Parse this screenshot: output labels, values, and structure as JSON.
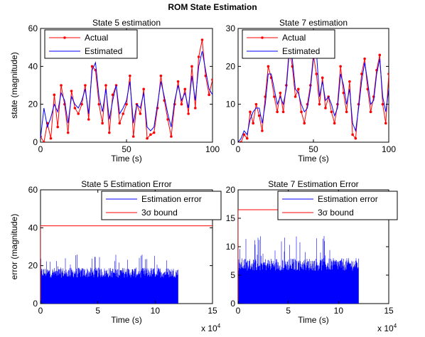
{
  "figure": {
    "suptitle": "ROM  State Estimation"
  },
  "colors": {
    "actual": "#ff0000",
    "estimated": "#0000ff",
    "axis": "#000000"
  },
  "chart_data": [
    {
      "type": "line",
      "title": "State 5 estimation",
      "xlabel": "Time (s)",
      "ylabel": "state (magnitude)",
      "xlim": [
        0,
        100
      ],
      "ylim": [
        0,
        60
      ],
      "xticks": [
        0,
        50,
        100
      ],
      "yticks": [
        0,
        20,
        40,
        60
      ],
      "xtick_labels": [
        "0",
        "50",
        "100"
      ],
      "ytick_labels": [
        "0",
        "20",
        "40",
        "60"
      ],
      "legend": {
        "position": "top-left"
      },
      "series": [
        {
          "name": "Actual",
          "color": "#ff0000",
          "marker": "dot",
          "x": [
            0,
            2,
            4,
            6,
            8,
            10,
            12,
            14,
            16,
            18,
            20,
            22,
            24,
            26,
            28,
            30,
            32,
            34,
            36,
            38,
            40,
            42,
            44,
            46,
            48,
            50,
            52,
            54,
            56,
            58,
            60,
            62,
            64,
            66,
            68,
            70,
            72,
            74,
            76,
            78,
            80,
            82,
            84,
            86,
            88,
            90,
            92,
            94,
            96,
            98,
            100
          ],
          "y": [
            3,
            0,
            10,
            2,
            25,
            8,
            30,
            20,
            5,
            27,
            18,
            15,
            20,
            30,
            12,
            40,
            38,
            20,
            10,
            30,
            5,
            25,
            30,
            10,
            15,
            20,
            35,
            3,
            20,
            15,
            28,
            2,
            4,
            5,
            18,
            35,
            22,
            12,
            3,
            20,
            32,
            20,
            28,
            15,
            40,
            18,
            45,
            54,
            35,
            25,
            33
          ]
        },
        {
          "name": "Estimated",
          "color": "#0000ff",
          "marker": "none",
          "x": [
            0,
            2,
            4,
            6,
            8,
            10,
            12,
            14,
            16,
            18,
            20,
            22,
            24,
            26,
            28,
            30,
            32,
            34,
            36,
            38,
            40,
            42,
            44,
            46,
            48,
            50,
            52,
            54,
            56,
            58,
            60,
            62,
            64,
            66,
            68,
            70,
            72,
            74,
            76,
            78,
            80,
            82,
            84,
            86,
            88,
            90,
            92,
            94,
            96,
            98,
            100
          ],
          "y": [
            2,
            18,
            8,
            13,
            20,
            16,
            26,
            22,
            10,
            24,
            20,
            18,
            22,
            28,
            15,
            38,
            42,
            24,
            16,
            28,
            12,
            22,
            30,
            15,
            18,
            22,
            32,
            10,
            20,
            18,
            26,
            8,
            6,
            8,
            20,
            32,
            24,
            15,
            8,
            22,
            30,
            22,
            26,
            18,
            35,
            22,
            40,
            48,
            38,
            28,
            25
          ]
        }
      ]
    },
    {
      "type": "line",
      "title": "State 7 estimation",
      "xlabel": "Time (s)",
      "ylabel": "",
      "xlim": [
        0,
        100
      ],
      "ylim": [
        0,
        30
      ],
      "xticks": [
        0,
        50,
        100
      ],
      "yticks": [
        0,
        10,
        20,
        30
      ],
      "xtick_labels": [
        "0",
        "50",
        "100"
      ],
      "ytick_labels": [
        "0",
        "10",
        "20",
        "30"
      ],
      "legend": {
        "position": "top-left"
      },
      "series": [
        {
          "name": "Actual",
          "color": "#ff0000",
          "marker": "dot",
          "x": [
            0,
            2,
            4,
            6,
            8,
            10,
            12,
            14,
            16,
            18,
            20,
            22,
            24,
            26,
            28,
            30,
            32,
            34,
            36,
            38,
            40,
            42,
            44,
            46,
            48,
            50,
            52,
            54,
            56,
            58,
            60,
            62,
            64,
            66,
            68,
            70,
            72,
            74,
            76,
            78,
            80,
            82,
            84,
            86,
            88,
            90,
            92,
            94,
            96,
            98,
            100
          ],
          "y": [
            0,
            0,
            2,
            1,
            8,
            5,
            10,
            7,
            3,
            12,
            20,
            17,
            12,
            8,
            13,
            8,
            15,
            25,
            20,
            12,
            14,
            8,
            5,
            10,
            15,
            23,
            18,
            10,
            17,
            9,
            12,
            8,
            5,
            10,
            20,
            13,
            8,
            16,
            2,
            1,
            10,
            18,
            22,
            14,
            8,
            12,
            19,
            23,
            10,
            5,
            18
          ]
        },
        {
          "name": "Estimated",
          "color": "#0000ff",
          "marker": "none",
          "x": [
            0,
            2,
            4,
            6,
            8,
            10,
            12,
            14,
            16,
            18,
            20,
            22,
            24,
            26,
            28,
            30,
            32,
            34,
            36,
            38,
            40,
            42,
            44,
            46,
            48,
            50,
            52,
            54,
            56,
            58,
            60,
            62,
            64,
            66,
            68,
            70,
            72,
            74,
            76,
            78,
            80,
            82,
            84,
            86,
            88,
            90,
            92,
            94,
            96,
            98,
            100
          ],
          "y": [
            0,
            1,
            3,
            2,
            6,
            8,
            9,
            9,
            5,
            10,
            18,
            18,
            14,
            10,
            12,
            10,
            14,
            24,
            22,
            14,
            13,
            10,
            8,
            9,
            14,
            22,
            24,
            12,
            16,
            11,
            12,
            10,
            7,
            9,
            18,
            15,
            10,
            14,
            5,
            3,
            9,
            16,
            21,
            16,
            10,
            11,
            18,
            22,
            12,
            8,
            14
          ]
        }
      ]
    },
    {
      "type": "bar",
      "title": "State 5 Estimation Error",
      "xlabel": "Time (s)",
      "ylabel": "error (magnitude)",
      "x_multiplier_label": "x 10",
      "x_multiplier_exp": "4",
      "xlim": [
        0,
        150000
      ],
      "ylim": [
        0,
        60
      ],
      "xticks": [
        0,
        50000,
        100000,
        150000
      ],
      "yticks": [
        0,
        20,
        40,
        60
      ],
      "xtick_labels": [
        "0",
        "5",
        "10",
        "15"
      ],
      "ytick_labels": [
        "0",
        "20",
        "40",
        "60"
      ],
      "legend": {
        "position": "top-right"
      },
      "error_band": {
        "x_start": 0,
        "x_end": 120000,
        "typical": 19,
        "peak": 26
      },
      "series": [
        {
          "name": "Estimation error",
          "color": "#0000ff"
        },
        {
          "name": "3σ bound",
          "color": "#ff0000",
          "value": 41
        }
      ]
    },
    {
      "type": "bar",
      "title": "State 7 Estimation Error",
      "xlabel": "Time (s)",
      "ylabel": "",
      "x_multiplier_label": "x 10",
      "x_multiplier_exp": "4",
      "xlim": [
        0,
        150000
      ],
      "ylim": [
        0,
        20
      ],
      "xticks": [
        0,
        50000,
        100000,
        150000
      ],
      "yticks": [
        0,
        5,
        10,
        15,
        20
      ],
      "xtick_labels": [
        "0",
        "5",
        "10",
        "15"
      ],
      "ytick_labels": [
        "0",
        "5",
        "10",
        "15",
        "20"
      ],
      "legend": {
        "position": "top-right"
      },
      "error_band": {
        "x_start": 0,
        "x_end": 120000,
        "typical": 8,
        "peak": 12
      },
      "series": [
        {
          "name": "Estimation error",
          "color": "#0000ff"
        },
        {
          "name": "3σ bound",
          "color": "#ff0000",
          "value": 16.5
        }
      ]
    }
  ]
}
